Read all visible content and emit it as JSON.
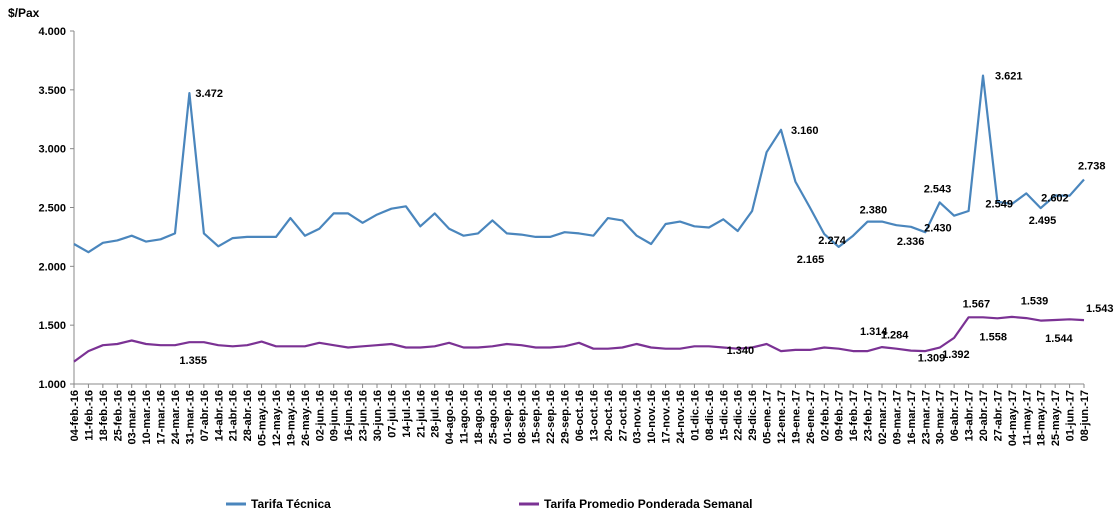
{
  "chart_data": {
    "type": "line",
    "ylabel": "$/Pax",
    "ylim": [
      1.0,
      4.0
    ],
    "yticks": [
      "1.000",
      "1.500",
      "2.000",
      "2.500",
      "3.000",
      "3.500",
      "4.000"
    ],
    "grid": false,
    "legend_position": "bottom",
    "categories": [
      "04-feb.-16",
      "11-feb.-16",
      "18-feb.-16",
      "25-feb.-16",
      "03-mar.-16",
      "10-mar.-16",
      "17-mar.-16",
      "24-mar.-16",
      "31-mar.-16",
      "07-abr.-16",
      "14-abr.-16",
      "21-abr.-16",
      "28-abr.-16",
      "05-may.-16",
      "12-may.-16",
      "19-may.-16",
      "26-may.-16",
      "02-jun.-16",
      "09-jun.-16",
      "16-jun.-16",
      "23-jun.-16",
      "30-jun.-16",
      "07-jul.-16",
      "14-jul.-16",
      "21-jul.-16",
      "28-jul.-16",
      "04-ago.-16",
      "11-ago.-16",
      "18-ago.-16",
      "25-ago.-16",
      "01-sep.-16",
      "08-sep.-16",
      "15-sep.-16",
      "22-sep.-16",
      "29-sep.-16",
      "06-oct.-16",
      "13-oct.-16",
      "20-oct.-16",
      "27-oct.-16",
      "03-nov.-16",
      "10-nov.-16",
      "17-nov.-16",
      "24-nov.-16",
      "01-dic.-16",
      "08-dic.-16",
      "15-dic.-16",
      "22-dic.-16",
      "29-dic.-16",
      "05-ene.-17",
      "12-ene.-17",
      "19-ene.-17",
      "26-ene.-17",
      "02-feb.-17",
      "09-feb.-17",
      "16-feb.-17",
      "23-feb.-17",
      "02-mar.-17",
      "09-mar.-17",
      "16-mar.-17",
      "23-mar.-17",
      "30-mar.-17",
      "06-abr.-17",
      "13-abr.-17",
      "20-abr.-17",
      "27-abr.-17",
      "04-may.-17",
      "11-may.-17",
      "18-may.-17",
      "25-may.-17",
      "01-jun.-17",
      "08-jun.-17"
    ],
    "series": [
      {
        "name": "Tarifa Técnica",
        "color": "#4a86bd",
        "values": [
          2.19,
          2.12,
          2.2,
          2.22,
          2.26,
          2.21,
          2.23,
          2.28,
          3.472,
          2.28,
          2.17,
          2.24,
          2.25,
          2.25,
          2.25,
          2.41,
          2.26,
          2.32,
          2.45,
          2.45,
          2.37,
          2.44,
          2.49,
          2.51,
          2.34,
          2.45,
          2.32,
          2.26,
          2.28,
          2.39,
          2.28,
          2.27,
          2.25,
          2.25,
          2.29,
          2.28,
          2.26,
          2.41,
          2.39,
          2.26,
          2.19,
          2.36,
          2.38,
          2.34,
          2.33,
          2.4,
          2.3,
          2.47,
          2.97,
          3.16,
          2.72,
          2.5,
          2.274,
          2.165,
          2.26,
          2.38,
          2.38,
          2.35,
          2.336,
          2.29,
          2.543,
          2.43,
          2.47,
          3.621,
          2.549,
          2.53,
          2.62,
          2.495,
          2.602,
          2.6,
          2.738
        ],
        "labels": [
          {
            "i": 8,
            "text": "3.472"
          },
          {
            "i": 49,
            "text": "3.160"
          },
          {
            "i": 52,
            "text": "2.274"
          },
          {
            "i": 53,
            "text": "2.165"
          },
          {
            "i": 55,
            "text": "2.380"
          },
          {
            "i": 58,
            "text": "2.336"
          },
          {
            "i": 60,
            "text": "2.543"
          },
          {
            "i": 61,
            "text": "2.430"
          },
          {
            "i": 63,
            "text": "3.621"
          },
          {
            "i": 64,
            "text": "2.549"
          },
          {
            "i": 67,
            "text": "2.495"
          },
          {
            "i": 68,
            "text": "2.602"
          },
          {
            "i": 70,
            "text": "2.738"
          }
        ]
      },
      {
        "name": "Tarifa Promedio Ponderada Semanal",
        "color": "#7b3294",
        "values": [
          1.19,
          1.28,
          1.33,
          1.34,
          1.37,
          1.34,
          1.33,
          1.33,
          1.355,
          1.355,
          1.33,
          1.32,
          1.33,
          1.36,
          1.32,
          1.32,
          1.32,
          1.35,
          1.33,
          1.31,
          1.32,
          1.33,
          1.34,
          1.31,
          1.31,
          1.32,
          1.35,
          1.31,
          1.31,
          1.32,
          1.34,
          1.33,
          1.31,
          1.31,
          1.32,
          1.35,
          1.3,
          1.3,
          1.31,
          1.34,
          1.31,
          1.3,
          1.3,
          1.32,
          1.32,
          1.31,
          1.3,
          1.31,
          1.34,
          1.28,
          1.29,
          1.29,
          1.31,
          1.3,
          1.28,
          1.28,
          1.314,
          1.3,
          1.284,
          1.28,
          1.309,
          1.392,
          1.567,
          1.567,
          1.558,
          1.57,
          1.56,
          1.539,
          1.544,
          1.55,
          1.543
        ],
        "labels": [
          {
            "i": 8,
            "text": "1.355"
          },
          {
            "i": 48,
            "text": "1.340"
          },
          {
            "i": 56,
            "text": "1.314"
          },
          {
            "i": 58,
            "text": "1.284"
          },
          {
            "i": 60,
            "text": "1.309"
          },
          {
            "i": 61,
            "text": "1.392"
          },
          {
            "i": 62,
            "text": "1.567"
          },
          {
            "i": 64,
            "text": "1.558"
          },
          {
            "i": 67,
            "text": "1.539"
          },
          {
            "i": 68,
            "text": "1.544"
          },
          {
            "i": 70,
            "text": "1.543"
          }
        ]
      }
    ]
  }
}
